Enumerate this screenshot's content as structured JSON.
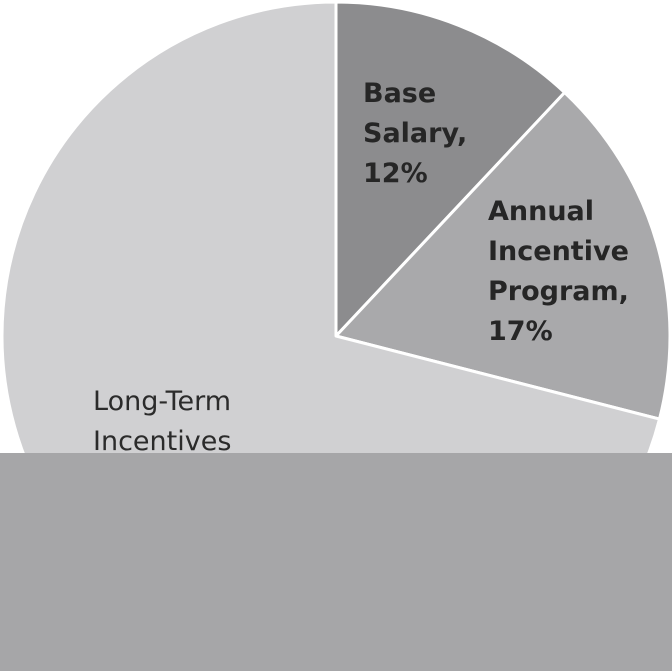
{
  "chart_data": {
    "type": "pie",
    "title": "",
    "slices": [
      {
        "name": "Base Salary",
        "value": 12,
        "value_label": "12%",
        "label_lines": [
          "Base",
          "Salary,",
          "12%"
        ],
        "color": "#8c8c8e"
      },
      {
        "name": "Annual Incentive Program",
        "value": 17,
        "value_label": "17%",
        "label_lines": [
          "Annual",
          "Incentive",
          "Program,",
          "17%"
        ],
        "color": "#a9a9ab"
      },
      {
        "name": "Long-Term Incentives",
        "value": 71,
        "value_label": "",
        "label_lines": [
          "Long-Term",
          "Incentives"
        ],
        "color": "#d0d0d2"
      }
    ],
    "start_angle_deg": 0,
    "direction": "clockwise",
    "slice_separator_color": "#ffffff",
    "legend": "none"
  },
  "overlay": {
    "color": "#a6a6a8"
  }
}
